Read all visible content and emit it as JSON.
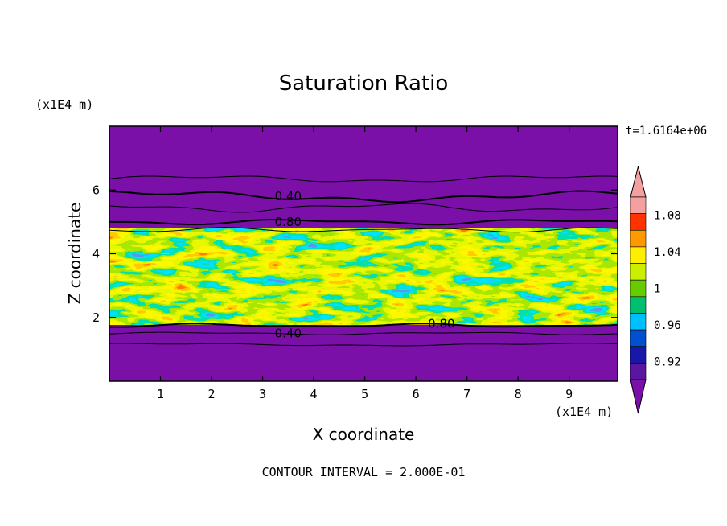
{
  "chart_data": {
    "type": "heatmap",
    "title": "Saturation Ratio",
    "xlabel": "X coordinate",
    "ylabel": "Z coordinate",
    "x_unit": "(x1E4 m)",
    "y_unit": "(x1E4 m)",
    "time_label": "t=1.6164e+06",
    "footer": "CONTOUR INTERVAL = 2.000E-01",
    "xlim": [
      0,
      9.95
    ],
    "ylim": [
      0,
      8
    ],
    "x_ticks": [
      "1",
      "2",
      "3",
      "4",
      "5",
      "6",
      "7",
      "8",
      "9"
    ],
    "y_ticks": [
      "2",
      "4",
      "6"
    ],
    "colorbar": {
      "levels": [
        0.9,
        0.92,
        0.94,
        0.96,
        0.98,
        1.0,
        1.02,
        1.04,
        1.06,
        1.08,
        1.1
      ],
      "tick_labels": [
        "0.92",
        "0.96",
        "1",
        "1.04",
        "1.08"
      ],
      "colors": [
        "#5a16a0",
        "#1818a8",
        "#0050d0",
        "#00bfff",
        "#00c070",
        "#66cc00",
        "#ccee00",
        "#ffee00",
        "#ff9900",
        "#ff3300",
        "#f5a0a0"
      ],
      "under_color": "#7a10a8",
      "over_color": "#f5a0a0"
    },
    "contour_labels": [
      {
        "text": "0.40",
        "x": 3.5,
        "y": 5.8
      },
      {
        "text": "0.80",
        "x": 3.5,
        "y": 5.0
      },
      {
        "text": "0.80",
        "x": 6.5,
        "y": 1.8
      },
      {
        "text": "0.40",
        "x": 3.5,
        "y": 1.5
      }
    ],
    "background_value": "< 0.90 (purple region outside cloud layer)",
    "cloud_layer_z_range": [
      1.9,
      4.7
    ]
  }
}
